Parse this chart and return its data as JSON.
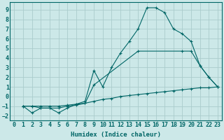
{
  "title": "",
  "xlabel": "Humidex (Indice chaleur)",
  "bg_color": "#cce8e8",
  "grid_color": "#aacccc",
  "line_color": "#006666",
  "xlim": [
    -0.5,
    23.5
  ],
  "ylim": [
    -2.5,
    9.8
  ],
  "xticks": [
    0,
    1,
    2,
    3,
    4,
    5,
    6,
    7,
    8,
    9,
    10,
    11,
    12,
    13,
    14,
    15,
    16,
    17,
    18,
    19,
    20,
    21,
    22,
    23
  ],
  "yticks": [
    -2,
    -1,
    0,
    1,
    2,
    3,
    4,
    5,
    6,
    7,
    8,
    9
  ],
  "line1_x": [
    1,
    2,
    3,
    4,
    5,
    6,
    7,
    8,
    9,
    10,
    11,
    12,
    13,
    14,
    15,
    16,
    17,
    18,
    19,
    20,
    21,
    22,
    23
  ],
  "line1_y": [
    -1.0,
    -1.7,
    -1.2,
    -1.2,
    -1.7,
    -1.2,
    -0.8,
    -0.5,
    2.7,
    1.0,
    3.0,
    4.5,
    5.7,
    7.0,
    9.2,
    9.2,
    8.7,
    7.0,
    6.5,
    5.7,
    3.2,
    2.0,
    1.0
  ],
  "line2_x": [
    1,
    2,
    3,
    4,
    5,
    6,
    7,
    8,
    9,
    14,
    19,
    20,
    21,
    22,
    23
  ],
  "line2_y": [
    -1.0,
    -1.0,
    -1.2,
    -1.2,
    -1.2,
    -1.0,
    -0.9,
    -0.7,
    1.2,
    4.7,
    4.7,
    4.7,
    3.2,
    2.0,
    1.0
  ],
  "line3_x": [
    1,
    2,
    3,
    4,
    5,
    6,
    7,
    8,
    9,
    10,
    11,
    12,
    13,
    14,
    15,
    16,
    17,
    18,
    19,
    20,
    21,
    22,
    23
  ],
  "line3_y": [
    -1.0,
    -1.0,
    -1.0,
    -1.0,
    -1.0,
    -0.9,
    -0.8,
    -0.7,
    -0.5,
    -0.3,
    -0.2,
    0.0,
    0.1,
    0.2,
    0.3,
    0.4,
    0.5,
    0.6,
    0.7,
    0.8,
    0.9,
    0.9,
    1.0
  ]
}
